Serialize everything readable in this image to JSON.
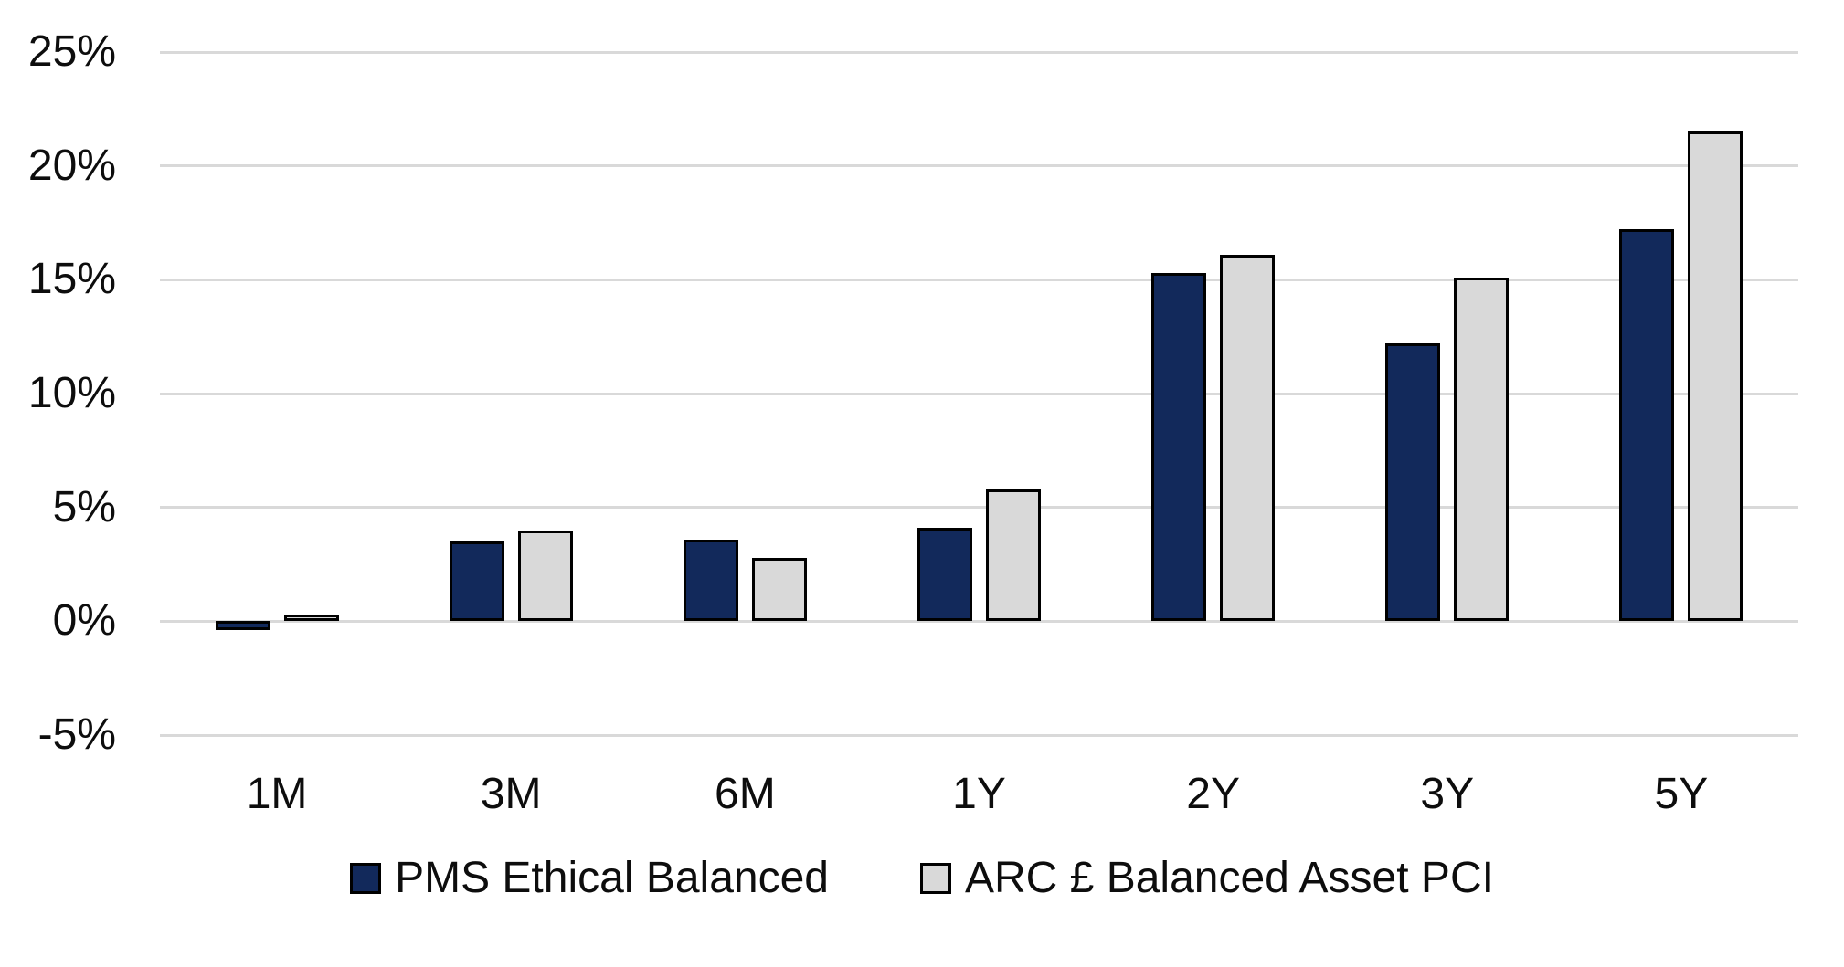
{
  "colors": {
    "background": "#ffffff",
    "gridline": "#d9d9d9",
    "bar_border": "#000000",
    "text": "#0d0d0d"
  },
  "legend": {
    "items": [
      {
        "label": "PMS Ethical Balanced",
        "swatch_color": "#12295b"
      },
      {
        "label": "ARC £ Balanced Asset PCI",
        "swatch_color": "#d9d9d9"
      }
    ]
  },
  "chart_data": {
    "type": "bar",
    "title": "",
    "xlabel": "",
    "ylabel": "",
    "categories": [
      "1M",
      "3M",
      "6M",
      "1Y",
      "2Y",
      "3Y",
      "5Y"
    ],
    "series": [
      {
        "name": "PMS Ethical Balanced",
        "color": "#12295b",
        "values": [
          -0.4,
          3.5,
          3.6,
          4.1,
          15.3,
          12.2,
          17.2
        ]
      },
      {
        "name": "ARC £ Balanced Asset PCI",
        "color": "#d9d9d9",
        "values": [
          0.3,
          4.0,
          2.8,
          5.8,
          16.1,
          15.1,
          21.5
        ]
      }
    ],
    "y_axis": {
      "min": -5,
      "max": 25,
      "step": 5,
      "unit": "%",
      "ticks": [
        {
          "value": 25,
          "label": "25%"
        },
        {
          "value": 20,
          "label": "20%"
        },
        {
          "value": 15,
          "label": "15%"
        },
        {
          "value": 10,
          "label": "10%"
        },
        {
          "value": 5,
          "label": "5%"
        },
        {
          "value": 0,
          "label": "0%"
        },
        {
          "value": -5,
          "label": "-5%"
        }
      ]
    },
    "grid": "horizontal",
    "legend_position": "bottom-center"
  }
}
